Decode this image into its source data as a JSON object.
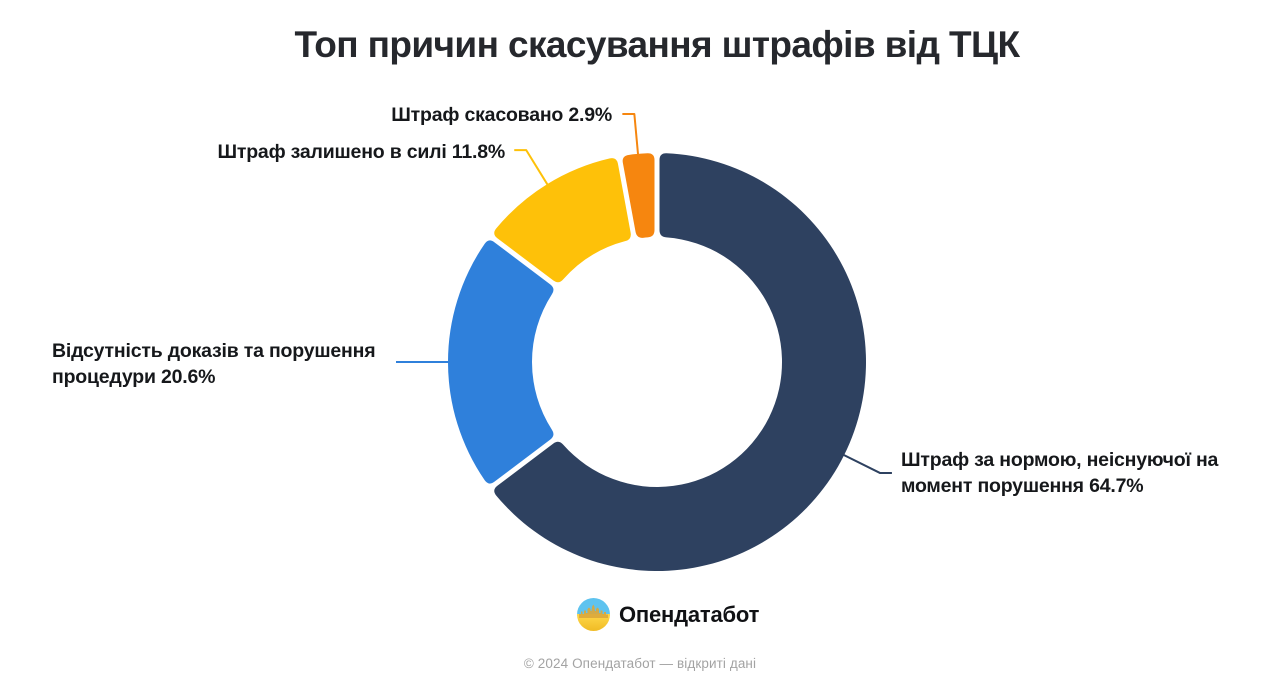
{
  "title": "Топ причин скасування штрафів від ТЦК",
  "chart_data": {
    "type": "pie",
    "donut": true,
    "title": "Топ причин скасування штрафів від ТЦК",
    "start_angle_deg": 0,
    "direction": "clockwise",
    "legend_position": "callout-labels",
    "slices": [
      {
        "name": "Штраф за нормою, неіснуючої на момент порушення",
        "value": 64.7,
        "pct_label": "64.7%",
        "color": "#2e4160",
        "label_lines": [
          "Штраф за нормою, неіснуючої на",
          "момент порушення 64.7%"
        ]
      },
      {
        "name": "Відсутність доказів та порушення процедури",
        "value": 20.6,
        "pct_label": "20.6%",
        "color": "#2f80db",
        "label_lines": [
          "Відсутність доказів та порушення",
          "процедури 20.6%"
        ]
      },
      {
        "name": "Штраф залишено в силі",
        "value": 11.8,
        "pct_label": "11.8%",
        "color": "#fec109",
        "label_lines": [
          "Штраф залишено в силі 11.8%"
        ]
      },
      {
        "name": "Штраф скасовано",
        "value": 2.9,
        "pct_label": "2.9%",
        "color": "#f6860f",
        "label_lines": [
          "Штраф скасовано 2.9%"
        ]
      }
    ]
  },
  "branding": {
    "logo_icon": "opendatabot-logo-icon",
    "wordmark": "Опендатабот"
  },
  "footer": {
    "copyright": "© 2024 Опендатабот — відкриті дані"
  }
}
